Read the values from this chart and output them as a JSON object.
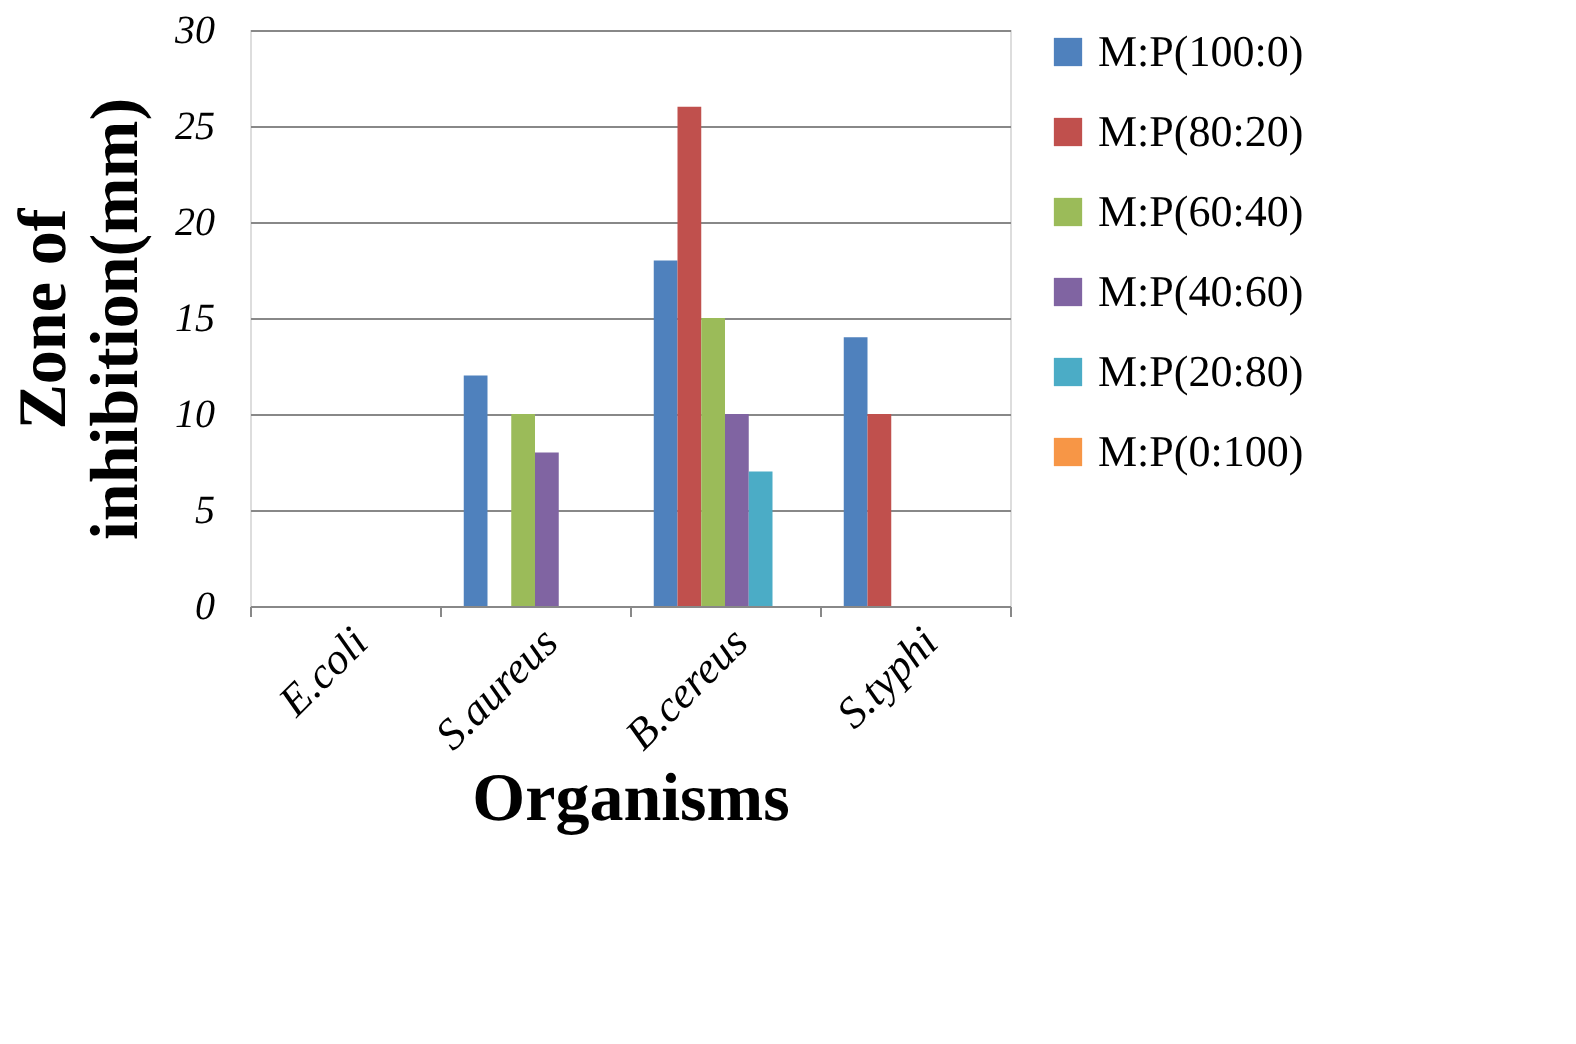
{
  "chart_data": {
    "type": "bar",
    "xlabel": "Organisms",
    "ylabel": "Zone of\ninhibition(mm)",
    "categories": [
      "E.coli",
      "S.aureus",
      "B.cereus",
      "S.typhi"
    ],
    "series": [
      {
        "name": "M:P(100:0)",
        "color": "#4f81bd",
        "values": [
          0,
          12,
          18,
          14
        ]
      },
      {
        "name": "M:P(80:20)",
        "color": "#c0504d",
        "values": [
          0,
          0,
          26,
          10
        ]
      },
      {
        "name": "M:P(60:40)",
        "color": "#9bbb59",
        "values": [
          0,
          10,
          15,
          0
        ]
      },
      {
        "name": "M:P(40:60)",
        "color": "#8064a2",
        "values": [
          0,
          8,
          10,
          0
        ]
      },
      {
        "name": "M:P(20:80)",
        "color": "#4bacc6",
        "values": [
          0,
          0,
          7,
          0
        ]
      },
      {
        "name": "M:P(0:100)",
        "color": "#f79646",
        "values": [
          0,
          0,
          0,
          0
        ]
      }
    ],
    "ylim": [
      0,
      30
    ],
    "yticks": [
      0,
      5,
      10,
      15,
      20,
      25,
      30
    ],
    "grid": "y",
    "legend": "right"
  }
}
